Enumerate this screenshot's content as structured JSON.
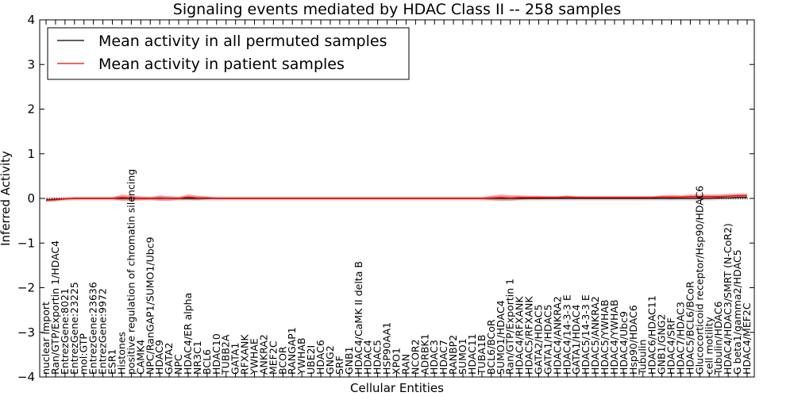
{
  "chart_data": {
    "type": "line",
    "title": "Signaling events mediated by HDAC Class II -- 258 samples",
    "xlabel": "Cellular Entities",
    "ylabel": "Inferred Activity",
    "ylim": [
      -4,
      4
    ],
    "yticks": [
      -4,
      -3,
      -2,
      -1,
      0,
      1,
      2,
      3,
      4
    ],
    "ytick_labels": [
      "−4",
      "−3",
      "−2",
      "−1",
      "0",
      "1",
      "2",
      "3",
      "4"
    ],
    "grid": false,
    "legend_position": "top-left",
    "categories": [
      "nuclear import",
      "Ran/GTP/Exportin 1/HDAC4",
      "EntrezGene:8021",
      "EntrezGene:23225",
      "mol:GTP",
      "EntrezGene:23636",
      "EntrezGene:9972",
      "ESR1",
      "Histones",
      "positive regulation of chromatin silencing",
      "CAMK4",
      "NPC/RanGAP1/SUMO1/Ubc9",
      "HDAC9",
      "GATA2",
      "NPC",
      "HDAC4/ER alpha",
      "NR3C1",
      "BCL6",
      "HDAC10",
      "TUBB2A",
      "GATA1",
      "RFXANK",
      "YWHAE",
      "ANKRA2",
      "MEF2C",
      "BCOR",
      "RANGAP1",
      "YWHAB",
      "UBE2I",
      "HDAC6",
      "GNG2",
      "SRF",
      "GNB1",
      "HDAC4/CaMK II delta B",
      "HDAC4",
      "HDAC5",
      "HSP90AA1",
      "XPO1",
      "RAN",
      "NCOR2",
      "ADRBK1",
      "HDAC3",
      "HDAC7",
      "RANBP2",
      "SUMO1",
      "HDAC11",
      "TUBA1B",
      "BCL6/BCoR",
      "SUMO1/HDAC4",
      "Ran/GTP/Exportin 1",
      "HDAC4/RFXANK",
      "HDAC5/RFXANK",
      "GATA2/HDAC5",
      "GATA1/HDAC5",
      "HDAC4/ANKRA2",
      "HDAC4/14-3-3 E",
      "GATA1/HDAC4",
      "HDAC5/14-3-3 E",
      "HDAC5/ANKRA2",
      "HDAC5/YWHAB",
      "HDAC4/YWHAB",
      "HDAC4/Ubc9",
      "Hsp90/HDAC6",
      "Tubulin",
      "HDAC6/HDAC11",
      "GNB1/GNG2",
      "HDAC4/SRF",
      "HDAC7/HDAC3",
      "HDAC5/BCL6/BCoR",
      "Glucocorticoid receptor/Hsp90/HDAC6",
      "cell motility",
      "Tubulin/HDAC6",
      "HDAC4/HDAC3/SMRT (N-CoR2)",
      "G beta1/gamma2/HDAC5",
      "HDAC4/MEF2C"
    ],
    "series": [
      {
        "name": "Mean activity in all permuted samples",
        "color": "#000000",
        "values": [
          -0.03,
          -0.02,
          -0.01,
          0,
          0,
          0,
          0,
          0,
          0,
          0,
          0,
          0,
          0,
          0,
          0,
          0,
          0,
          0,
          0,
          0,
          0,
          0,
          0,
          0,
          0,
          0,
          0,
          0,
          0,
          0,
          0,
          0,
          0,
          0,
          0,
          0,
          0,
          0,
          0,
          0,
          0,
          0,
          0,
          0,
          0,
          0,
          0,
          0,
          0,
          0,
          0,
          0,
          0,
          0,
          0,
          0,
          0,
          0,
          0,
          0,
          0,
          0,
          0,
          0,
          0,
          0,
          0,
          0,
          0,
          0,
          0,
          0.01,
          0.01,
          0.02,
          0.02
        ]
      },
      {
        "name": "Mean activity in patient samples",
        "color": "#ff0000",
        "band_color": "#e06060",
        "values": [
          -0.04,
          -0.03,
          -0.01,
          0,
          0,
          0,
          0,
          0,
          0.02,
          0.01,
          0,
          0,
          0.01,
          0,
          0,
          0.03,
          0.01,
          0.01,
          0,
          0,
          0,
          0,
          0,
          0,
          0,
          0,
          0,
          0,
          0,
          0,
          0,
          0,
          0,
          0,
          0,
          0,
          0,
          0,
          0,
          0,
          0,
          0,
          0,
          0,
          0,
          0,
          0,
          0.01,
          0.02,
          0.01,
          0.02,
          0.02,
          0.02,
          0.02,
          0.02,
          0.03,
          0.02,
          0.02,
          0.02,
          0.02,
          0.02,
          0.02,
          0.02,
          0.02,
          0.02,
          0.03,
          0.03,
          0.03,
          0.04,
          0.04,
          0.04,
          0.04,
          0.05,
          0.06,
          0.06
        ],
        "band_halfwidth": [
          0.03,
          0.03,
          0.02,
          0.02,
          0.02,
          0.02,
          0.02,
          0.02,
          0.07,
          0.06,
          0.04,
          0.03,
          0.06,
          0.05,
          0.03,
          0.06,
          0.05,
          0.03,
          0.02,
          0.02,
          0.02,
          0.02,
          0.02,
          0.02,
          0.02,
          0.02,
          0.02,
          0.02,
          0.02,
          0.02,
          0.02,
          0.02,
          0.02,
          0.02,
          0.02,
          0.02,
          0.02,
          0.02,
          0.02,
          0.02,
          0.02,
          0.02,
          0.02,
          0.02,
          0.02,
          0.02,
          0.02,
          0.05,
          0.07,
          0.06,
          0.05,
          0.04,
          0.04,
          0.03,
          0.03,
          0.04,
          0.03,
          0.03,
          0.03,
          0.03,
          0.03,
          0.03,
          0.03,
          0.03,
          0.03,
          0.04,
          0.05,
          0.04,
          0.05,
          0.05,
          0.05,
          0.05,
          0.05,
          0.05,
          0.05
        ]
      }
    ],
    "permuted_band_halfwidth": 0.05,
    "reference_line": 0
  }
}
